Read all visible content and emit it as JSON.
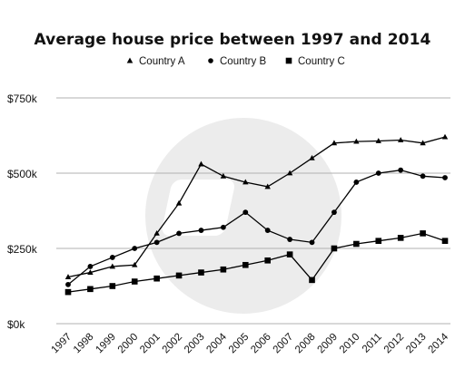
{
  "chart_data": {
    "type": "line",
    "title": "Average house price between 1997 and 2014",
    "xlabel": "",
    "ylabel": "",
    "categories": [
      "1997",
      "1998",
      "1999",
      "2000",
      "2001",
      "2002",
      "2003",
      "2004",
      "2005",
      "2006",
      "2007",
      "2008",
      "2009",
      "2010",
      "2011",
      "2012",
      "2013",
      "2014"
    ],
    "ylim": [
      0,
      750000
    ],
    "yticks": [
      0,
      250000,
      500000,
      750000
    ],
    "ytick_labels": [
      "$0k",
      "$250k",
      "$500k",
      "$750k"
    ],
    "grid": "horizontal",
    "legend_position": "top",
    "series": [
      {
        "name": "Country A",
        "marker": "triangle",
        "values": [
          155000,
          170000,
          190000,
          195000,
          300000,
          400000,
          530000,
          490000,
          470000,
          455000,
          500000,
          550000,
          600000,
          605000,
          607000,
          610000,
          600000,
          620000
        ]
      },
      {
        "name": "Country B",
        "marker": "circle",
        "values": [
          130000,
          190000,
          220000,
          250000,
          270000,
          300000,
          310000,
          320000,
          370000,
          310000,
          280000,
          270000,
          370000,
          470000,
          500000,
          510000,
          490000,
          485000
        ]
      },
      {
        "name": "Country C",
        "marker": "square",
        "values": [
          105000,
          115000,
          125000,
          140000,
          150000,
          160000,
          170000,
          180000,
          195000,
          210000,
          230000,
          145000,
          250000,
          265000,
          275000,
          285000,
          300000,
          275000
        ]
      }
    ]
  },
  "colors": {
    "line": "#000000",
    "grid": "#b0b0b0",
    "watermark": "#ececec"
  }
}
